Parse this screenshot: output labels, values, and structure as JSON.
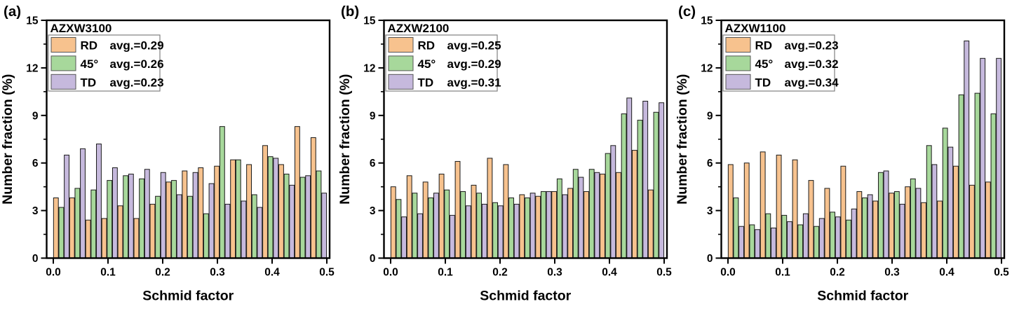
{
  "figure": {
    "ylabel": "Number fraction (%)",
    "xlabel": "Schmid factor",
    "yticks": [
      0,
      3,
      6,
      9,
      12,
      15
    ],
    "xtick_labels": [
      "0.0",
      "0.1",
      "0.2",
      "0.3",
      "0.4",
      "0.5"
    ],
    "colors": {
      "RD": "#F7C28E",
      "45deg": "#A7D89B",
      "TD": "#C6B9DD"
    },
    "bar_edge_color": "#1a1a1a",
    "legend_border_color": "#808080",
    "axis_color": "#000000"
  },
  "chart_data": [
    {
      "type": "bar",
      "panel_label": "(a)",
      "title": "AZXW3100",
      "xlabel": "Schmid factor",
      "ylabel": "Number fraction (%)",
      "ylim": [
        0,
        15
      ],
      "xlim": [
        0.0,
        0.5
      ],
      "grid": false,
      "legend_position": "top-left",
      "legend": [
        {
          "name": "RD",
          "avg": "avg.=0.29"
        },
        {
          "name": "45°",
          "avg": "avg.=0.26"
        },
        {
          "name": "TD",
          "avg": "avg.=0.23"
        }
      ],
      "bin_width": 0.029,
      "categories": [
        0.015,
        0.044,
        0.074,
        0.103,
        0.132,
        0.162,
        0.191,
        0.221,
        0.25,
        0.279,
        0.309,
        0.338,
        0.368,
        0.397,
        0.426,
        0.456,
        0.485
      ],
      "series": [
        {
          "name": "RD",
          "color_key": "RD",
          "values": [
            3.8,
            3.8,
            2.4,
            2.5,
            3.3,
            2.5,
            3.4,
            4.8,
            5.5,
            5.7,
            5.8,
            6.2,
            5.9,
            7.1,
            5.9,
            8.3,
            7.6
          ]
        },
        {
          "name": "45°",
          "color_key": "45deg",
          "values": [
            3.2,
            4.4,
            4.3,
            4.9,
            5.2,
            5.0,
            3.9,
            4.9,
            3.9,
            2.8,
            8.3,
            6.2,
            4.0,
            6.4,
            5.3,
            5.1,
            5.5
          ]
        },
        {
          "name": "TD",
          "color_key": "TD",
          "values": [
            6.5,
            6.9,
            7.2,
            5.7,
            5.3,
            5.6,
            5.4,
            4.0,
            5.4,
            4.7,
            3.4,
            3.6,
            3.2,
            6.3,
            4.6,
            5.2,
            4.1
          ]
        }
      ]
    },
    {
      "type": "bar",
      "panel_label": "(b)",
      "title": "AZXW2100",
      "xlabel": "Schmid factor",
      "ylabel": "Number fraction (%)",
      "ylim": [
        0,
        15
      ],
      "xlim": [
        0.0,
        0.5
      ],
      "grid": false,
      "legend_position": "top-left",
      "legend": [
        {
          "name": "RD",
          "avg": "avg.=0.25"
        },
        {
          "name": "45°",
          "avg": "avg.=0.29"
        },
        {
          "name": "TD",
          "avg": "avg.=0.31"
        }
      ],
      "bin_width": 0.029,
      "categories": [
        0.015,
        0.044,
        0.074,
        0.103,
        0.132,
        0.162,
        0.191,
        0.221,
        0.25,
        0.279,
        0.309,
        0.338,
        0.368,
        0.397,
        0.426,
        0.456,
        0.485
      ],
      "series": [
        {
          "name": "RD",
          "color_key": "RD",
          "values": [
            4.5,
            5.2,
            4.8,
            5.3,
            6.1,
            4.6,
            6.3,
            5.9,
            4.0,
            3.9,
            4.2,
            4.4,
            4.2,
            5.3,
            5.4,
            6.8,
            4.3
          ]
        },
        {
          "name": "45°",
          "color_key": "45deg",
          "values": [
            3.7,
            4.1,
            3.8,
            4.3,
            4.2,
            4.1,
            3.5,
            3.8,
            3.8,
            4.2,
            5.0,
            5.6,
            5.6,
            6.6,
            9.1,
            8.7,
            9.2
          ]
        },
        {
          "name": "TD",
          "color_key": "TD",
          "values": [
            2.6,
            2.8,
            4.1,
            2.7,
            3.3,
            3.4,
            3.3,
            3.4,
            4.1,
            4.2,
            4.0,
            5.1,
            5.4,
            7.1,
            10.1,
            9.9,
            9.8
          ]
        }
      ]
    },
    {
      "type": "bar",
      "panel_label": "(c)",
      "title": "AZXW1100",
      "xlabel": "Schmid factor",
      "ylabel": "Number fraction (%)",
      "ylim": [
        0,
        15
      ],
      "xlim": [
        0.0,
        0.5
      ],
      "grid": false,
      "legend_position": "top-left",
      "legend": [
        {
          "name": "RD",
          "avg": "avg.=0.23"
        },
        {
          "name": "45°",
          "avg": "avg.=0.32"
        },
        {
          "name": "TD",
          "avg": "avg.=0.34"
        }
      ],
      "bin_width": 0.029,
      "categories": [
        0.015,
        0.044,
        0.074,
        0.103,
        0.132,
        0.162,
        0.191,
        0.221,
        0.25,
        0.279,
        0.309,
        0.338,
        0.368,
        0.397,
        0.426,
        0.456,
        0.485
      ],
      "series": [
        {
          "name": "RD",
          "color_key": "RD",
          "values": [
            5.9,
            6.0,
            6.7,
            6.5,
            6.2,
            4.9,
            4.4,
            5.8,
            4.2,
            3.6,
            4.1,
            4.5,
            3.5,
            3.6,
            5.8,
            4.6,
            4.8
          ]
        },
        {
          "name": "45°",
          "color_key": "45deg",
          "values": [
            3.8,
            2.1,
            2.8,
            2.7,
            2.1,
            2.0,
            2.9,
            2.4,
            3.8,
            5.4,
            4.2,
            5.0,
            7.1,
            8.2,
            10.3,
            10.4,
            9.1
          ]
        },
        {
          "name": "TD",
          "color_key": "TD",
          "values": [
            2.0,
            1.8,
            1.9,
            2.3,
            2.8,
            2.5,
            2.6,
            3.1,
            4.0,
            5.5,
            3.4,
            4.4,
            5.9,
            7.0,
            13.7,
            12.6,
            12.6
          ]
        }
      ]
    }
  ]
}
